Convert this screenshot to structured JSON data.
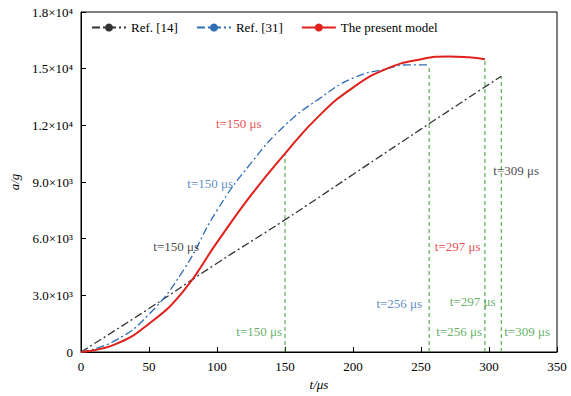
{
  "chart_data": {
    "type": "line",
    "x_label": "t/μs",
    "y_label": "a/g",
    "xlim": [
      0,
      350
    ],
    "xticks": [
      0,
      50,
      100,
      150,
      200,
      250,
      300,
      350
    ],
    "ylim": [
      0,
      18000
    ],
    "yticks": [
      0,
      {
        "value": 3000,
        "label": "3.0×10³"
      },
      {
        "value": 6000,
        "label": "6.0×10³"
      },
      {
        "value": 9000,
        "label": "9.0×10³"
      },
      {
        "value": 12000,
        "label": "1.2×10⁴"
      },
      {
        "value": 15000,
        "label": "1.5×10⁴"
      },
      {
        "value": 18000,
        "label": "1.8×10⁴"
      }
    ],
    "grid": false,
    "legend": "upper left",
    "series": [
      {
        "name": "Ref. [14]",
        "color": "#333333",
        "line_style": "dashdot",
        "x": [
          0,
          50,
          100,
          150,
          200,
          250,
          309
        ],
        "values": [
          0,
          2300,
          4700,
          7000,
          9400,
          11800,
          14600
        ]
      },
      {
        "name": "Ref. [31]",
        "color": "#2f6db5",
        "line_style": "dashdot",
        "x": [
          0,
          25,
          50,
          75,
          100,
          125,
          150,
          175,
          200,
          225,
          240,
          256
        ],
        "values": [
          0,
          600,
          2000,
          4300,
          7500,
          10000,
          12000,
          13400,
          14500,
          15000,
          15200,
          15200
        ]
      },
      {
        "name": "The present model",
        "color": "#e0201b",
        "line_style": "solid",
        "x": [
          0,
          25,
          50,
          75,
          100,
          125,
          150,
          175,
          200,
          225,
          250,
          270,
          285,
          297
        ],
        "values": [
          0,
          400,
          1500,
          3200,
          5800,
          8300,
          10500,
          12500,
          14000,
          15000,
          15500,
          15650,
          15600,
          15500
        ]
      }
    ],
    "vlines": [
      {
        "x": 150,
        "y": 10500,
        "color": "#3a9a3a"
      },
      {
        "x": 256,
        "y": 15200,
        "color": "#3a9a3a"
      },
      {
        "x": 297,
        "y": 15500,
        "color": "#3a9a3a"
      },
      {
        "x": 309,
        "y": 14600,
        "color": "#3a9a3a"
      }
    ],
    "annotations": [
      {
        "text": "t=150 μs",
        "x": 70,
        "y": 5600,
        "color": "#111111"
      },
      {
        "text": "t=150 μs",
        "x": 95,
        "y": 8900,
        "color": "#2f6db5"
      },
      {
        "text": "t=150 μs",
        "x": 116,
        "y": 12100,
        "color": "#e0201b"
      },
      {
        "text": "t=256 μs",
        "x": 234,
        "y": 2550,
        "color": "#2f6db5"
      },
      {
        "text": "t=297 μs",
        "x": 277,
        "y": 5600,
        "color": "#e0201b"
      },
      {
        "text": "t=309 μs",
        "x": 320,
        "y": 9600,
        "color": "#111111"
      },
      {
        "text": "t=150 μs",
        "x": 131,
        "y": 1100,
        "color": "#3a9a3a"
      },
      {
        "text": "t=297 μs",
        "x": 288,
        "y": 2700,
        "color": "#3a9a3a"
      },
      {
        "text": "t=256 μs",
        "x": 278,
        "y": 1100,
        "color": "#3a9a3a"
      },
      {
        "text": "t=309 μs",
        "x": 328,
        "y": 1100,
        "color": "#3a9a3a"
      }
    ]
  }
}
